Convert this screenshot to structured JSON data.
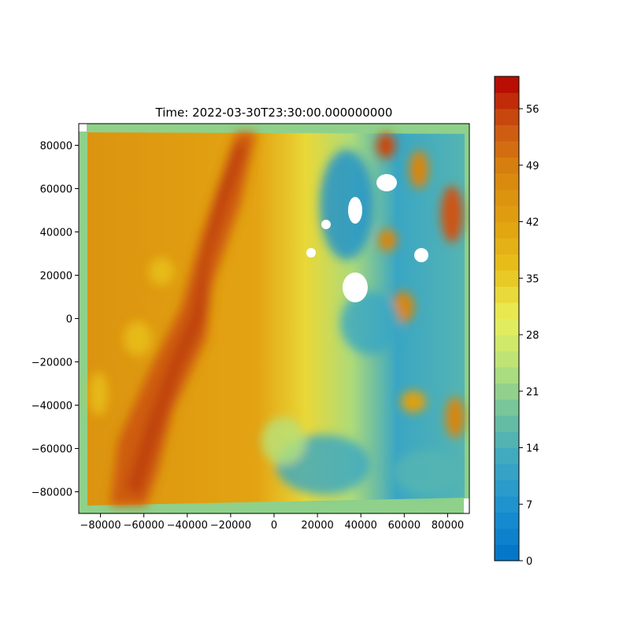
{
  "chart_data": {
    "type": "heatmap",
    "title": "Time: 2022-03-30T23:30:00.000000000",
    "xlabel": "",
    "ylabel": "",
    "xlim": [
      -90000,
      90000
    ],
    "ylim": [
      -90000,
      90000
    ],
    "x_ticks": [
      -80000,
      -60000,
      -40000,
      -20000,
      0,
      20000,
      40000,
      60000,
      80000
    ],
    "y_ticks": [
      -80000,
      -60000,
      -40000,
      -20000,
      0,
      20000,
      40000,
      60000,
      80000
    ],
    "x_tick_labels": [
      "−80000",
      "−60000",
      "−40000",
      "−20000",
      "0",
      "20000",
      "40000",
      "60000",
      "80000"
    ],
    "y_tick_labels": [
      "−80000",
      "−60000",
      "−40000",
      "−20000",
      "0",
      "20000",
      "40000",
      "60000",
      "80000"
    ],
    "colorbar": {
      "range": [
        0,
        60
      ],
      "ticks": [
        0,
        7,
        14,
        21,
        28,
        35,
        42,
        49,
        56
      ],
      "tick_labels": [
        "0",
        "7",
        "14",
        "21",
        "28",
        "35",
        "42",
        "49",
        "56"
      ],
      "colors": [
        "#0072c6",
        "#1a8fcf",
        "#3aa6c4",
        "#6cc09f",
        "#b6e27a",
        "#e9ef5a",
        "#e8c21a",
        "#e0a011",
        "#d8860f",
        "#cc5512",
        "#b40000"
      ]
    },
    "grid": false,
    "features": [
      {
        "name": "reflectivity-band-west",
        "x": [
          -60000,
          -20000
        ],
        "y": [
          -80000,
          80000
        ],
        "value": 50
      },
      {
        "name": "low-values-east",
        "x": [
          20000,
          60000
        ],
        "y": [
          -80000,
          80000
        ],
        "value": 8
      },
      {
        "name": "cells-northeast",
        "x": [
          50000,
          85000
        ],
        "y": [
          20000,
          85000
        ],
        "value": 46
      }
    ]
  }
}
